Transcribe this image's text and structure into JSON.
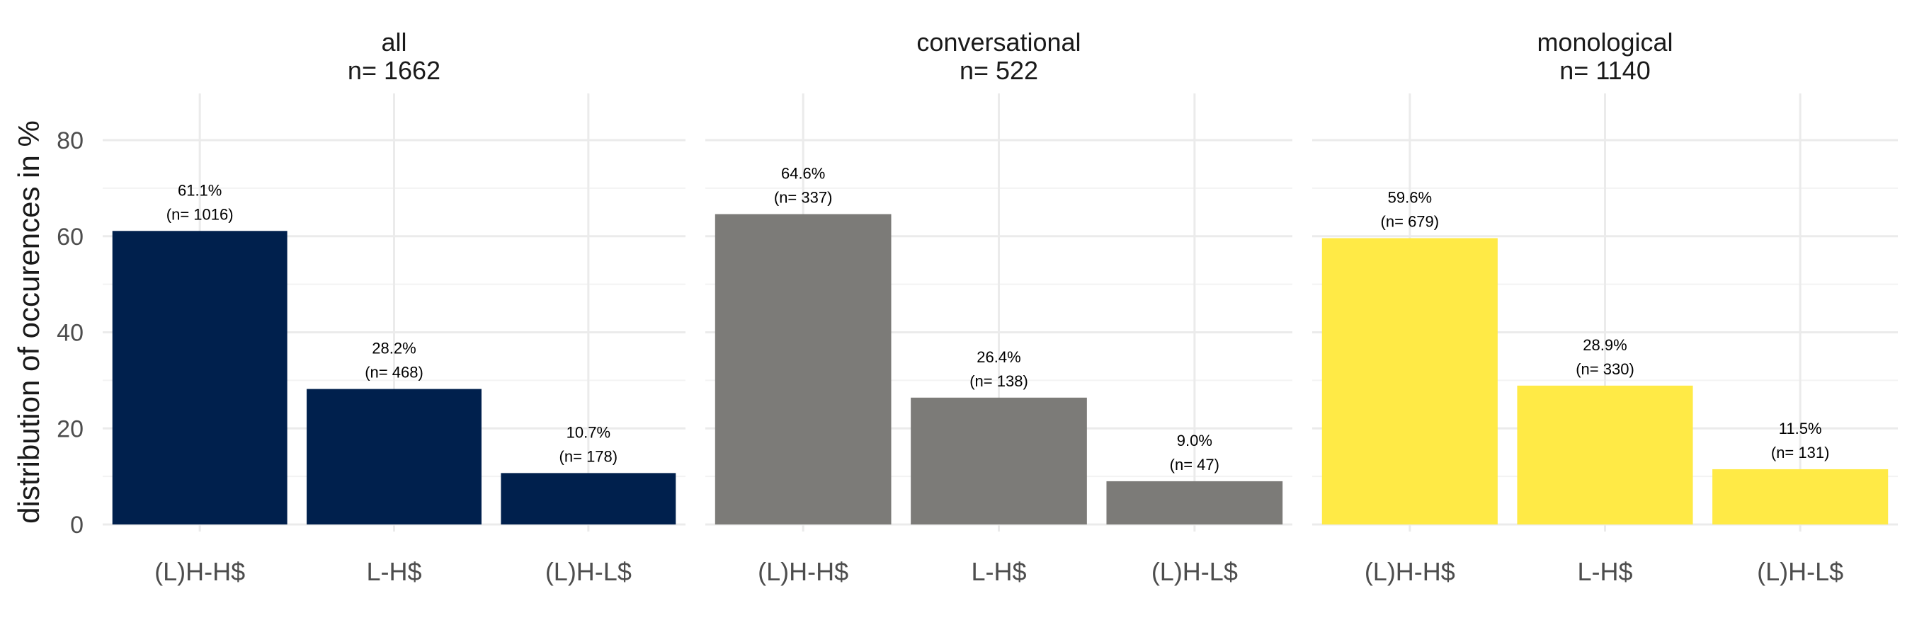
{
  "chart_data": {
    "type": "bar",
    "ylabel": "distribution of occurences in %",
    "xlabel": "",
    "ylim": [
      0,
      90
    ],
    "y_ticks": [
      0,
      20,
      40,
      60,
      80
    ],
    "grid": true,
    "legend": "none",
    "categories": [
      "(L)H-H$",
      "L-H$",
      "(L)H-L$"
    ],
    "panels": [
      {
        "title": "all",
        "n_label": "n=  1662",
        "color": "#00204D",
        "values": [
          61.1,
          28.2,
          10.7
        ],
        "labels_pct": [
          "61.1%",
          "28.2%",
          "10.7%"
        ],
        "labels_n": [
          "(n= 1016)",
          "(n= 468)",
          "(n= 178)"
        ]
      },
      {
        "title": "conversational",
        "n_label": "n=  522",
        "color": "#7C7B78",
        "values": [
          64.6,
          26.4,
          9.0
        ],
        "labels_pct": [
          "64.6%",
          "26.4%",
          "9.0%"
        ],
        "labels_n": [
          "(n= 337)",
          "(n= 138)",
          "(n= 47)"
        ]
      },
      {
        "title": "monological",
        "n_label": "n=  1140",
        "color": "#FFEA46",
        "values": [
          59.6,
          28.9,
          11.5
        ],
        "labels_pct": [
          "59.6%",
          "28.9%",
          "11.5%"
        ],
        "labels_n": [
          "(n= 679)",
          "(n= 330)",
          "(n= 131)"
        ]
      }
    ]
  }
}
